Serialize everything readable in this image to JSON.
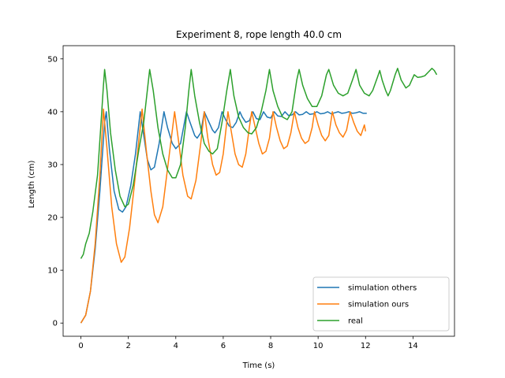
{
  "chart_data": {
    "type": "line",
    "title": "Experiment 8, rope length 40.0 cm",
    "xlabel": "Time (s)",
    "ylabel": "Length (cm)",
    "xlim": [
      -0.75,
      15.75
    ],
    "ylim": [
      -2.5,
      52.5
    ],
    "xticks": [
      0,
      2,
      4,
      6,
      8,
      10,
      12,
      14
    ],
    "yticks": [
      0,
      10,
      20,
      30,
      40,
      50
    ],
    "grid": false,
    "legend_position": "lower-right",
    "series": [
      {
        "name": "simulation others",
        "color": "#1f77b4",
        "points": [
          [
            0,
            0
          ],
          [
            0.2,
            1.5
          ],
          [
            0.4,
            6
          ],
          [
            0.6,
            14
          ],
          [
            0.8,
            25
          ],
          [
            1.0,
            38
          ],
          [
            1.07,
            40
          ],
          [
            1.2,
            33
          ],
          [
            1.4,
            25
          ],
          [
            1.6,
            21.5
          ],
          [
            1.75,
            21
          ],
          [
            1.9,
            22
          ],
          [
            2.1,
            26
          ],
          [
            2.3,
            32
          ],
          [
            2.5,
            40
          ],
          [
            2.6,
            37
          ],
          [
            2.8,
            31
          ],
          [
            2.95,
            29
          ],
          [
            3.1,
            29.5
          ],
          [
            3.3,
            34
          ],
          [
            3.5,
            40
          ],
          [
            3.65,
            37
          ],
          [
            3.85,
            34
          ],
          [
            4.0,
            33
          ],
          [
            4.2,
            34
          ],
          [
            4.45,
            40
          ],
          [
            4.6,
            38
          ],
          [
            4.8,
            35.5
          ],
          [
            4.9,
            35
          ],
          [
            5.05,
            36
          ],
          [
            5.2,
            40
          ],
          [
            5.35,
            38.5
          ],
          [
            5.55,
            36.5
          ],
          [
            5.65,
            36
          ],
          [
            5.8,
            37
          ],
          [
            5.95,
            40
          ],
          [
            6.1,
            38.5
          ],
          [
            6.25,
            37.3
          ],
          [
            6.4,
            37
          ],
          [
            6.55,
            38
          ],
          [
            6.7,
            40
          ],
          [
            6.8,
            39
          ],
          [
            6.95,
            38
          ],
          [
            7.1,
            38.3
          ],
          [
            7.25,
            40
          ],
          [
            7.4,
            38.7
          ],
          [
            7.55,
            38.5
          ],
          [
            7.7,
            40
          ],
          [
            7.85,
            39
          ],
          [
            8.0,
            38.8
          ],
          [
            8.15,
            40
          ],
          [
            8.3,
            39.2
          ],
          [
            8.45,
            39.1
          ],
          [
            8.6,
            40
          ],
          [
            8.75,
            39.3
          ],
          [
            8.9,
            39.4
          ],
          [
            9.05,
            40
          ],
          [
            9.2,
            39.4
          ],
          [
            9.35,
            39.5
          ],
          [
            9.5,
            40
          ],
          [
            9.65,
            39.5
          ],
          [
            9.8,
            39.6
          ],
          [
            9.95,
            40
          ],
          [
            10.1,
            39.6
          ],
          [
            10.25,
            39.7
          ],
          [
            10.4,
            40
          ],
          [
            10.55,
            39.6
          ],
          [
            10.7,
            39.8
          ],
          [
            10.85,
            40
          ],
          [
            11.0,
            39.7
          ],
          [
            11.15,
            39.8
          ],
          [
            11.3,
            40
          ],
          [
            11.45,
            39.7
          ],
          [
            11.6,
            39.8
          ],
          [
            11.75,
            40
          ],
          [
            11.9,
            39.7
          ],
          [
            12.05,
            39.7
          ]
        ]
      },
      {
        "name": "simulation ours",
        "color": "#ff7f0e",
        "points": [
          [
            0,
            0
          ],
          [
            0.2,
            1.5
          ],
          [
            0.4,
            6
          ],
          [
            0.6,
            15
          ],
          [
            0.8,
            28
          ],
          [
            0.95,
            40.5
          ],
          [
            1.1,
            33
          ],
          [
            1.3,
            22
          ],
          [
            1.5,
            15
          ],
          [
            1.7,
            11.5
          ],
          [
            1.85,
            12.5
          ],
          [
            2.05,
            18
          ],
          [
            2.25,
            26
          ],
          [
            2.45,
            35
          ],
          [
            2.58,
            40.5
          ],
          [
            2.75,
            33
          ],
          [
            2.95,
            25
          ],
          [
            3.1,
            20.5
          ],
          [
            3.25,
            19
          ],
          [
            3.45,
            22
          ],
          [
            3.7,
            31
          ],
          [
            3.95,
            40
          ],
          [
            4.1,
            35
          ],
          [
            4.3,
            28
          ],
          [
            4.5,
            24
          ],
          [
            4.65,
            23.5
          ],
          [
            4.85,
            27
          ],
          [
            5.05,
            34
          ],
          [
            5.2,
            40
          ],
          [
            5.35,
            35
          ],
          [
            5.55,
            30
          ],
          [
            5.7,
            28
          ],
          [
            5.85,
            28.5
          ],
          [
            6.0,
            32
          ],
          [
            6.2,
            40
          ],
          [
            6.35,
            36
          ],
          [
            6.5,
            32
          ],
          [
            6.65,
            30
          ],
          [
            6.8,
            29.5
          ],
          [
            6.95,
            32
          ],
          [
            7.1,
            37
          ],
          [
            7.2,
            40
          ],
          [
            7.35,
            37
          ],
          [
            7.5,
            34
          ],
          [
            7.65,
            32
          ],
          [
            7.8,
            32.5
          ],
          [
            7.95,
            35
          ],
          [
            8.1,
            40
          ],
          [
            8.25,
            37
          ],
          [
            8.4,
            34.5
          ],
          [
            8.55,
            33
          ],
          [
            8.7,
            33.5
          ],
          [
            8.85,
            36
          ],
          [
            9.0,
            40
          ],
          [
            9.15,
            37
          ],
          [
            9.3,
            35
          ],
          [
            9.45,
            34
          ],
          [
            9.6,
            34.5
          ],
          [
            9.75,
            37
          ],
          [
            9.85,
            40
          ],
          [
            10.0,
            37.5
          ],
          [
            10.15,
            35.5
          ],
          [
            10.3,
            34.5
          ],
          [
            10.45,
            35.5
          ],
          [
            10.6,
            40
          ],
          [
            10.75,
            37.5
          ],
          [
            10.9,
            36
          ],
          [
            11.05,
            35.2
          ],
          [
            11.2,
            36.5
          ],
          [
            11.35,
            40
          ],
          [
            11.5,
            38
          ],
          [
            11.65,
            36.3
          ],
          [
            11.8,
            35.5
          ],
          [
            11.95,
            37.5
          ],
          [
            12.0,
            36.3
          ]
        ]
      },
      {
        "name": "real",
        "color": "#2ca02c",
        "points": [
          [
            0,
            12.2
          ],
          [
            0.1,
            13
          ],
          [
            0.2,
            15
          ],
          [
            0.35,
            17
          ],
          [
            0.5,
            21
          ],
          [
            0.7,
            28
          ],
          [
            0.85,
            38
          ],
          [
            0.95,
            45
          ],
          [
            1.0,
            48
          ],
          [
            1.1,
            44
          ],
          [
            1.25,
            36
          ],
          [
            1.45,
            29
          ],
          [
            1.65,
            24
          ],
          [
            1.85,
            22
          ],
          [
            2.0,
            22.5
          ],
          [
            2.2,
            26
          ],
          [
            2.45,
            33
          ],
          [
            2.65,
            38
          ],
          [
            2.8,
            44
          ],
          [
            2.9,
            48
          ],
          [
            3.05,
            44
          ],
          [
            3.25,
            37
          ],
          [
            3.45,
            32
          ],
          [
            3.65,
            29
          ],
          [
            3.85,
            27.5
          ],
          [
            4.0,
            27.5
          ],
          [
            4.2,
            30
          ],
          [
            4.4,
            37
          ],
          [
            4.55,
            44
          ],
          [
            4.65,
            48
          ],
          [
            4.8,
            43
          ],
          [
            5.0,
            38
          ],
          [
            5.2,
            34
          ],
          [
            5.4,
            32.5
          ],
          [
            5.55,
            32
          ],
          [
            5.75,
            33
          ],
          [
            5.95,
            38
          ],
          [
            6.15,
            44
          ],
          [
            6.3,
            48
          ],
          [
            6.45,
            43
          ],
          [
            6.65,
            39
          ],
          [
            6.85,
            37
          ],
          [
            7.05,
            36
          ],
          [
            7.2,
            35.8
          ],
          [
            7.4,
            37
          ],
          [
            7.6,
            40
          ],
          [
            7.8,
            44
          ],
          [
            7.95,
            48
          ],
          [
            8.1,
            44
          ],
          [
            8.3,
            41
          ],
          [
            8.5,
            39
          ],
          [
            8.7,
            38.5
          ],
          [
            8.9,
            40
          ],
          [
            9.1,
            46
          ],
          [
            9.2,
            48
          ],
          [
            9.35,
            45
          ],
          [
            9.55,
            42.5
          ],
          [
            9.75,
            41
          ],
          [
            9.95,
            41
          ],
          [
            10.15,
            43
          ],
          [
            10.35,
            47
          ],
          [
            10.45,
            48
          ],
          [
            10.65,
            45
          ],
          [
            10.85,
            43.5
          ],
          [
            11.05,
            43
          ],
          [
            11.25,
            43.5
          ],
          [
            11.45,
            46
          ],
          [
            11.6,
            48
          ],
          [
            11.75,
            45
          ],
          [
            11.95,
            43.5
          ],
          [
            12.15,
            43
          ],
          [
            12.3,
            44
          ],
          [
            12.5,
            46.5
          ],
          [
            12.6,
            47.8
          ],
          [
            12.7,
            46
          ],
          [
            12.85,
            44
          ],
          [
            12.95,
            43
          ],
          [
            13.05,
            44
          ],
          [
            13.25,
            47
          ],
          [
            13.35,
            48.2
          ],
          [
            13.5,
            46
          ],
          [
            13.7,
            44.5
          ],
          [
            13.85,
            45
          ],
          [
            13.95,
            46
          ],
          [
            14.05,
            47
          ],
          [
            14.2,
            46.5
          ],
          [
            14.35,
            46.6
          ],
          [
            14.5,
            46.8
          ],
          [
            14.65,
            47.5
          ],
          [
            14.8,
            48.2
          ],
          [
            14.9,
            47.8
          ],
          [
            15.0,
            47
          ]
        ]
      }
    ]
  }
}
